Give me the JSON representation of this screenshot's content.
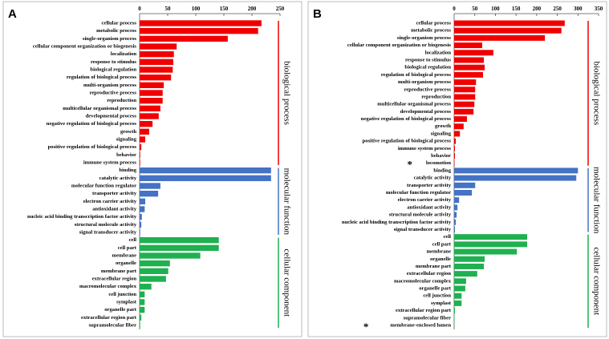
{
  "chart_data": [
    {
      "type": "bar",
      "panel": "A",
      "xlim": [
        0,
        250
      ],
      "xticks": [
        0,
        50,
        100,
        150,
        200,
        250
      ],
      "groups": [
        {
          "name": "biological process",
          "color": "#f00000",
          "categories": [
            "cellular process",
            "metabolic process",
            "single-organism process",
            "cellular component organization or biogenesis",
            "localization",
            "response to stimulus",
            "biological regulation",
            "regulation of biological process",
            "multi-organism process",
            "reproductive process",
            "reproduction",
            "multicellular organismal process",
            "developmental process",
            "negative regulation of biological process",
            "growth",
            "signaling",
            "positive regulation of biological process",
            "behavior",
            "immune system process"
          ],
          "values": [
            217,
            211,
            157,
            66,
            61,
            60,
            59,
            56,
            43,
            41,
            41,
            37,
            34,
            23,
            17,
            10,
            3,
            1,
            1
          ]
        },
        {
          "name": "molecular function",
          "color": "#4472c4",
          "categories": [
            "binding",
            "catalytic activity",
            "molecular function regulator",
            "transporter activity",
            "electron carrier activity",
            "antioxidant activity",
            "nucleic acid binding transcription factor activity",
            "structural molecule activity",
            "signal transducer activity"
          ],
          "values": [
            234,
            234,
            37,
            33,
            10,
            9,
            4,
            3,
            1
          ]
        },
        {
          "name": "cellular component",
          "color": "#1fb050",
          "categories": [
            "cell",
            "cell part",
            "membrane",
            "organelle",
            "membrane part",
            "extracellular region",
            "macromolecular complex",
            "cell junction",
            "symplast",
            "organelle part",
            "extracellular region part",
            "supramolecular fiber"
          ],
          "values": [
            141,
            141,
            108,
            54,
            51,
            47,
            21,
            9,
            9,
            9,
            3,
            1
          ]
        }
      ]
    },
    {
      "type": "bar",
      "panel": "B",
      "xlim": [
        0,
        350
      ],
      "xticks": [
        0,
        50,
        100,
        150,
        200,
        250,
        300,
        350
      ],
      "groups": [
        {
          "name": "biological process",
          "color": "#f00000",
          "categories": [
            "cellular process",
            "metabolic process",
            "single-organism process",
            "cellular component organization or biogenesis",
            "localization",
            "response to stimulus",
            "biological regulation",
            "regulation of biological process",
            "multi-organism process",
            "reproductive process",
            "reproduction",
            "multicellular organismal process",
            "developmental process",
            "negative regulation of biological process",
            "growth",
            "signaling",
            "positive regulation of biological process",
            "immune system process",
            "behavior",
            "locomotion"
          ],
          "values": [
            268,
            260,
            220,
            68,
            95,
            72,
            74,
            70,
            53,
            51,
            51,
            49,
            47,
            31,
            23,
            14,
            4,
            2,
            2,
            1
          ]
        },
        {
          "name": "molecular function",
          "color": "#4472c4",
          "categories": [
            "binding",
            "catalytic activity",
            "transporter activity",
            "molecular function regulator",
            "electron carrier activity",
            "antioxidant activity",
            "structural molecule activity",
            "nucleic acid binding transcription factor activity",
            "signal transducer activity"
          ],
          "values": [
            300,
            296,
            51,
            43,
            12,
            8,
            6,
            4,
            2
          ]
        },
        {
          "name": "cellular component",
          "color": "#1fb050",
          "categories": [
            "cell",
            "cell part",
            "membrane",
            "organelle",
            "membrane part",
            "extracellular region",
            "macromolecular complex",
            "organelle part",
            "cell junction",
            "symplast",
            "extracellular region part",
            "supramolecular fiber",
            "membrane-enclosed lumen"
          ],
          "values": [
            177,
            177,
            152,
            74,
            72,
            56,
            29,
            27,
            18,
            18,
            2,
            1,
            1
          ]
        }
      ],
      "annotations": [
        {
          "text": "*",
          "category": "locomotion"
        },
        {
          "text": "*",
          "category": "membrane-enclosed lumen"
        }
      ]
    }
  ]
}
